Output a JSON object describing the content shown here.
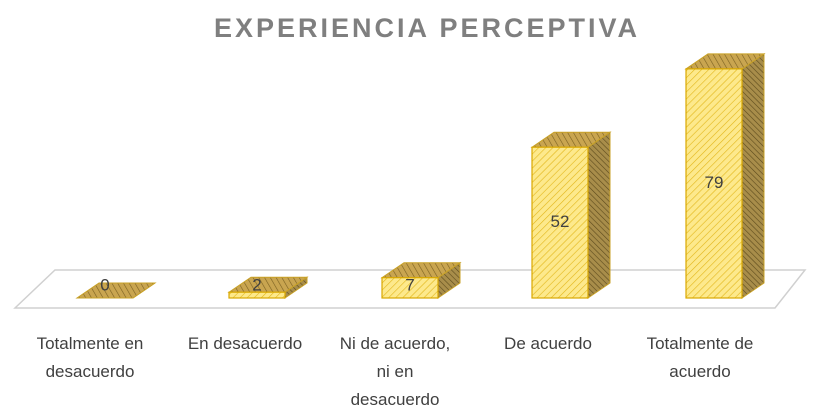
{
  "chart_data": {
    "type": "bar3d",
    "title": "EXPERIENCIA PERCEPTIVA",
    "categories": [
      "Totalmente en desacuerdo",
      "En desacuerdo",
      "Ni de acuerdo, ni en desacuerdo",
      "De acuerdo",
      "Totalmente de acuerdo"
    ],
    "values": [
      0,
      2,
      7,
      52,
      79
    ],
    "color": "#fde98c"
  }
}
